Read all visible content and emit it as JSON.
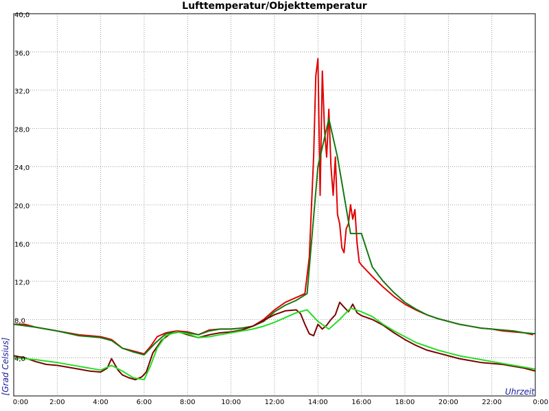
{
  "chart_data": {
    "type": "line",
    "title": "Lufttemperatur/Objekttemperatur",
    "xlabel": "Uhrzeit",
    "ylabel": "[Grad Celsius]",
    "xlim": [
      0,
      24
    ],
    "ylim": [
      0,
      40
    ],
    "grid": true,
    "x_ticks": [
      0,
      2,
      4,
      6,
      8,
      10,
      12,
      14,
      16,
      18,
      20,
      22,
      24
    ],
    "x_tick_labels": [
      "0:00",
      "2:00",
      "4:00",
      "6:00",
      "8:00",
      "10:00",
      "12:00",
      "14:00",
      "16:00",
      "18:00",
      "20:00",
      "22:00",
      "0:00"
    ],
    "y_ticks": [
      4,
      8,
      12,
      16,
      20,
      24,
      28,
      32,
      36,
      40
    ],
    "y_tick_labels": [
      "4,0",
      "8,0",
      "12,0",
      "16,0",
      "20,0",
      "24,0",
      "28,0",
      "32,0",
      "36,0",
      "40,0"
    ],
    "series": [
      {
        "color": "#e00000",
        "x": [
          0,
          0.5,
          1,
          2,
          3,
          4,
          4.5,
          5,
          5.5,
          6,
          6.3,
          6.6,
          7,
          7.5,
          8,
          8.5,
          9,
          9.5,
          10,
          10.5,
          11,
          11.5,
          12,
          12.5,
          13,
          13.4,
          13.6,
          13.8,
          13.9,
          14.0,
          14.1,
          14.2,
          14.3,
          14.4,
          14.5,
          14.6,
          14.7,
          14.8,
          14.9,
          15.0,
          15.1,
          15.2,
          15.3,
          15.4,
          15.5,
          15.6,
          15.7,
          15.8,
          15.9,
          16.0,
          16.5,
          17,
          17.5,
          18,
          18.5,
          19,
          19.5,
          20,
          20.5,
          21,
          21.5,
          22,
          22.5,
          23,
          23.5,
          23.9
        ],
        "y": [
          7.5,
          7.5,
          7.2,
          6.8,
          6.4,
          6.2,
          5.9,
          5.0,
          4.7,
          4.4,
          5.2,
          6.2,
          6.6,
          6.8,
          6.7,
          6.4,
          6.9,
          7.0,
          7.0,
          7.1,
          7.3,
          8.0,
          9.0,
          9.8,
          10.3,
          10.7,
          14.5,
          25.0,
          33.5,
          35.3,
          21.0,
          34.0,
          28.0,
          25.0,
          30.0,
          24.0,
          21.0,
          25.0,
          19.0,
          18.0,
          15.5,
          15.0,
          17.5,
          18.0,
          20.0,
          18.5,
          19.5,
          16.0,
          14.0,
          13.7,
          12.5,
          11.4,
          10.4,
          9.6,
          9.0,
          8.5,
          8.1,
          7.8,
          7.5,
          7.3,
          7.1,
          7.0,
          6.8,
          6.7,
          6.6,
          6.4
        ]
      },
      {
        "color": "#0f7a0f",
        "x": [
          0,
          1,
          2,
          3,
          4,
          4.5,
          5,
          5.5,
          6,
          6.5,
          7,
          7.5,
          8,
          8.5,
          9,
          9.5,
          10,
          10.5,
          11,
          11.5,
          12,
          12.5,
          13,
          13.5,
          14.0,
          14.5,
          14.9,
          15.5,
          16.0,
          16.5,
          17,
          17.5,
          18,
          18.5,
          19,
          19.5,
          20,
          20.5,
          21,
          21.5,
          22,
          22.5,
          23,
          23.5,
          24
        ],
        "y": [
          7.5,
          7.2,
          6.8,
          6.3,
          6.1,
          5.8,
          5.0,
          4.6,
          4.3,
          5.5,
          6.5,
          6.7,
          6.6,
          6.4,
          6.8,
          7.0,
          7.0,
          7.1,
          7.3,
          7.8,
          8.8,
          9.5,
          10.0,
          10.7,
          24.0,
          29.0,
          25.0,
          17.0,
          17.0,
          13.5,
          12.0,
          10.8,
          9.8,
          9.1,
          8.5,
          8.1,
          7.8,
          7.5,
          7.3,
          7.1,
          7.0,
          6.9,
          6.8,
          6.6,
          6.5
        ]
      },
      {
        "color": "#7a0000",
        "x": [
          0,
          0.5,
          1,
          1.5,
          2,
          2.5,
          3,
          3.5,
          4,
          4.3,
          4.5,
          4.8,
          5,
          5.3,
          5.6,
          5.9,
          6.1,
          6.4,
          6.8,
          7.2,
          7.6,
          8,
          8.5,
          9,
          9.5,
          10,
          10.5,
          11,
          11.5,
          12,
          12.5,
          13,
          13.2,
          13.4,
          13.6,
          13.8,
          14.0,
          14.2,
          14.4,
          14.6,
          14.8,
          15.0,
          15.2,
          15.4,
          15.6,
          15.8,
          16.0,
          16.5,
          17,
          17.5,
          18,
          18.5,
          19,
          19.5,
          20,
          20.5,
          21,
          21.5,
          22,
          22.5,
          23,
          23.5,
          24
        ],
        "y": [
          4.2,
          4.0,
          3.6,
          3.3,
          3.2,
          3.0,
          2.8,
          2.6,
          2.5,
          2.9,
          3.9,
          2.7,
          2.2,
          1.9,
          1.7,
          2.0,
          2.5,
          4.5,
          5.8,
          6.5,
          6.7,
          6.4,
          6.1,
          6.4,
          6.6,
          6.7,
          6.9,
          7.3,
          7.9,
          8.5,
          8.9,
          9.0,
          8.6,
          7.5,
          6.5,
          6.3,
          7.5,
          7.0,
          7.4,
          8.0,
          8.5,
          9.8,
          9.3,
          8.8,
          9.6,
          8.7,
          8.4,
          8.0,
          7.4,
          6.6,
          5.9,
          5.3,
          4.8,
          4.5,
          4.2,
          3.9,
          3.7,
          3.5,
          3.4,
          3.3,
          3.1,
          2.9,
          2.6
        ]
      },
      {
        "color": "#22dd22",
        "x": [
          0,
          1,
          2,
          3,
          4,
          4.5,
          5,
          5.5,
          6,
          6.3,
          6.6,
          7,
          7.5,
          8,
          8.5,
          9,
          9.5,
          10,
          10.5,
          11,
          11.5,
          12,
          12.5,
          13,
          13.5,
          14.0,
          14.5,
          15.0,
          15.5,
          16.0,
          16.5,
          17,
          17.5,
          18,
          18.5,
          19,
          19.5,
          20,
          20.5,
          21,
          21.5,
          22,
          22.5,
          23,
          23.5,
          24
        ],
        "y": [
          4.0,
          3.8,
          3.5,
          3.1,
          2.7,
          3.2,
          2.6,
          1.9,
          1.7,
          3.2,
          5.0,
          6.3,
          6.7,
          6.5,
          6.1,
          6.2,
          6.4,
          6.6,
          6.8,
          7.0,
          7.3,
          7.7,
          8.2,
          8.7,
          9.0,
          7.8,
          7.0,
          8.0,
          9.2,
          8.8,
          8.3,
          7.5,
          6.8,
          6.2,
          5.6,
          5.2,
          4.8,
          4.5,
          4.2,
          4.0,
          3.8,
          3.6,
          3.4,
          3.2,
          3.0,
          2.8
        ]
      }
    ]
  }
}
